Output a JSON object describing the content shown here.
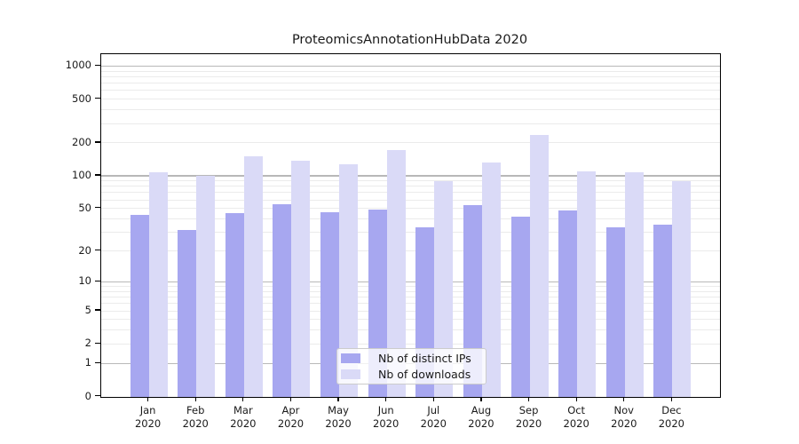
{
  "colors": {
    "background": "#ffffff",
    "axis": "#000000",
    "text": "#1a1a1a",
    "grid_minor": "#ebebeb",
    "grid_major": "#b8b8b8",
    "bar_distinct_ips": "#a7a7f0",
    "bar_downloads": "#dadaf7"
  },
  "chart_data": {
    "type": "bar",
    "title": "ProteomicsAnnotationHubData 2020",
    "categories": [
      "Jan 2020",
      "Feb 2020",
      "Mar 2020",
      "Apr 2020",
      "May 2020",
      "Jun 2020",
      "Jul 2020",
      "Aug 2020",
      "Sep 2020",
      "Oct 2020",
      "Nov 2020",
      "Dec 2020"
    ],
    "series": [
      {
        "key": "distinct-ips",
        "name": "Nb of distinct IPs",
        "color": "#a7a7f0",
        "values": [
          44,
          32,
          46,
          55,
          47,
          49,
          34,
          54,
          42,
          48,
          34,
          36
        ]
      },
      {
        "key": "downloads",
        "name": "Nb of downloads",
        "color": "#dadaf7",
        "values": [
          108,
          100,
          152,
          138,
          129,
          175,
          90,
          133,
          240,
          111,
          108,
          90
        ]
      }
    ],
    "xlabel": "",
    "ylabel": "",
    "yscale": "log1p",
    "ylim": [
      0,
      1285
    ],
    "yticks": [
      0,
      1,
      2,
      5,
      10,
      20,
      50,
      100,
      200,
      500,
      1000
    ],
    "grid_major": [
      1,
      10,
      100,
      1000
    ],
    "grid_minor": [
      2,
      3,
      4,
      5,
      6,
      7,
      8,
      9,
      20,
      30,
      40,
      50,
      60,
      70,
      80,
      90,
      200,
      300,
      400,
      500,
      600,
      700,
      800,
      900
    ],
    "grid": true,
    "legend_position": "bottom-center-inside"
  }
}
